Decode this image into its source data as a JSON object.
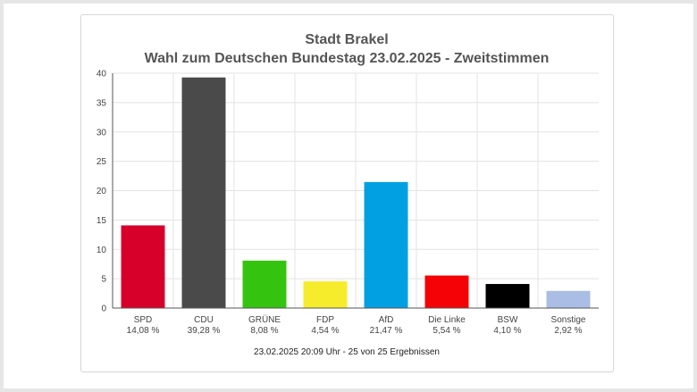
{
  "chart_data": {
    "type": "bar",
    "title": "Stadt Brakel",
    "subtitle": "Wahl zum Deutschen Bundestag 23.02.2025  - Zweitstimmen",
    "categories": [
      "SPD",
      "CDU",
      "GRÜNE",
      "FDP",
      "AfD",
      "Die Linke",
      "BSW",
      "Sonstige"
    ],
    "values": [
      14.08,
      39.28,
      8.08,
      4.54,
      21.47,
      5.54,
      4.1,
      2.92
    ],
    "value_labels": [
      "14,08 %",
      "39,28 %",
      "8,08 %",
      "4,54 %",
      "21,47 %",
      "5,54 %",
      "4,10 %",
      "2,92 %"
    ],
    "colors": [
      "#d7002a",
      "#4a4a4a",
      "#34c40f",
      "#f6ec2b",
      "#00a0e2",
      "#f40205",
      "#000000",
      "#aabde5"
    ],
    "ylim": [
      0,
      40
    ],
    "yticks": [
      0,
      5,
      10,
      15,
      20,
      25,
      30,
      35,
      40
    ],
    "grid": true,
    "footer": "23.02.2025 20:09 Uhr - 25 von 25 Ergebnissen"
  }
}
